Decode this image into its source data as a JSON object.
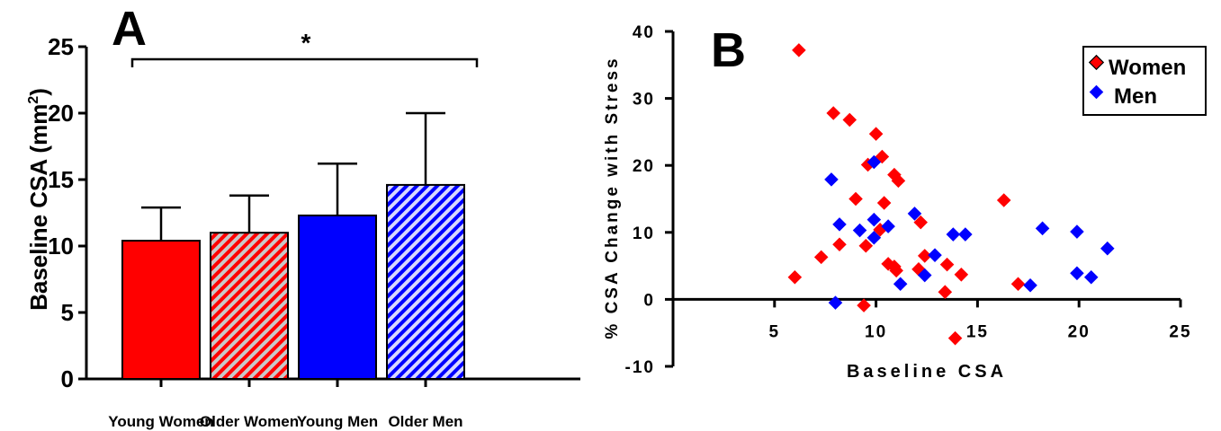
{
  "panel_a": {
    "letter": "A",
    "ylabel_main": "Baseline CSA (mm",
    "ylabel_sup": "2",
    "ylabel_close": ")",
    "significance": "*"
  },
  "panel_b": {
    "letter": "B",
    "xlabel": "Baseline CSA",
    "ylabel": "% CSA Change with Stress"
  },
  "colors": {
    "women": "#ff0000",
    "men": "#0000ff",
    "hatch_light": "#cccccc",
    "axis": "#000000"
  },
  "chart_data": [
    {
      "type": "bar",
      "panel": "A",
      "categories": [
        "Young Women",
        "Older Women",
        "Young Men",
        "Older Men"
      ],
      "values": [
        10.4,
        11.0,
        12.3,
        14.6
      ],
      "error_plus": [
        2.5,
        2.8,
        3.9,
        5.4
      ],
      "fill": [
        "solid",
        "hatched",
        "solid",
        "hatched"
      ],
      "colors": [
        "#ff0000",
        "#ff0000",
        "#0000ff",
        "#0000ff"
      ],
      "ylabel": "Baseline CSA (mm2)",
      "ylim": [
        0,
        25
      ],
      "yticks": [
        0,
        5,
        10,
        15,
        20,
        25
      ],
      "annotations": [
        {
          "text": "*",
          "from": "Young Women",
          "to": "Older Men"
        }
      ]
    },
    {
      "type": "scatter",
      "panel": "B",
      "xlabel": "Baseline CSA",
      "ylabel": "% CSA Change with Stress",
      "xlim": [
        0,
        25
      ],
      "ylim": [
        -10,
        40
      ],
      "xticks": [
        5,
        10,
        15,
        20,
        25
      ],
      "yticks": [
        -10,
        0,
        10,
        20,
        30,
        40
      ],
      "legend_position": "top-right",
      "series": [
        {
          "name": "Women",
          "color": "#ff0000",
          "points": [
            [
              6.2,
              37.2
            ],
            [
              7.9,
              27.8
            ],
            [
              8.7,
              26.8
            ],
            [
              10.0,
              24.7
            ],
            [
              10.3,
              21.3
            ],
            [
              9.6,
              20.1
            ],
            [
              10.9,
              18.6
            ],
            [
              11.1,
              17.7
            ],
            [
              9.0,
              15.0
            ],
            [
              10.4,
              14.4
            ],
            [
              16.3,
              14.8
            ],
            [
              12.2,
              11.5
            ],
            [
              10.2,
              10.4
            ],
            [
              8.2,
              8.2
            ],
            [
              9.5,
              8.0
            ],
            [
              7.3,
              6.3
            ],
            [
              12.4,
              6.5
            ],
            [
              10.6,
              5.3
            ],
            [
              10.9,
              4.9
            ],
            [
              11.0,
              4.3
            ],
            [
              12.1,
              4.5
            ],
            [
              13.5,
              5.2
            ],
            [
              14.2,
              3.7
            ],
            [
              6.0,
              3.3
            ],
            [
              17.0,
              2.3
            ],
            [
              13.4,
              1.1
            ],
            [
              9.4,
              -0.9
            ],
            [
              13.9,
              -5.8
            ]
          ]
        },
        {
          "name": "Men",
          "color": "#0000ff",
          "points": [
            [
              7.8,
              17.9
            ],
            [
              9.9,
              20.5
            ],
            [
              11.9,
              12.8
            ],
            [
              9.9,
              11.9
            ],
            [
              8.2,
              11.2
            ],
            [
              10.6,
              10.9
            ],
            [
              9.2,
              10.3
            ],
            [
              9.9,
              9.2
            ],
            [
              13.8,
              9.7
            ],
            [
              14.4,
              9.7
            ],
            [
              18.2,
              10.6
            ],
            [
              19.9,
              10.1
            ],
            [
              21.4,
              7.6
            ],
            [
              12.9,
              6.6
            ],
            [
              12.4,
              3.6
            ],
            [
              11.2,
              2.3
            ],
            [
              19.9,
              3.9
            ],
            [
              20.6,
              3.3
            ],
            [
              17.6,
              2.1
            ],
            [
              8.0,
              -0.5
            ]
          ]
        }
      ]
    }
  ]
}
